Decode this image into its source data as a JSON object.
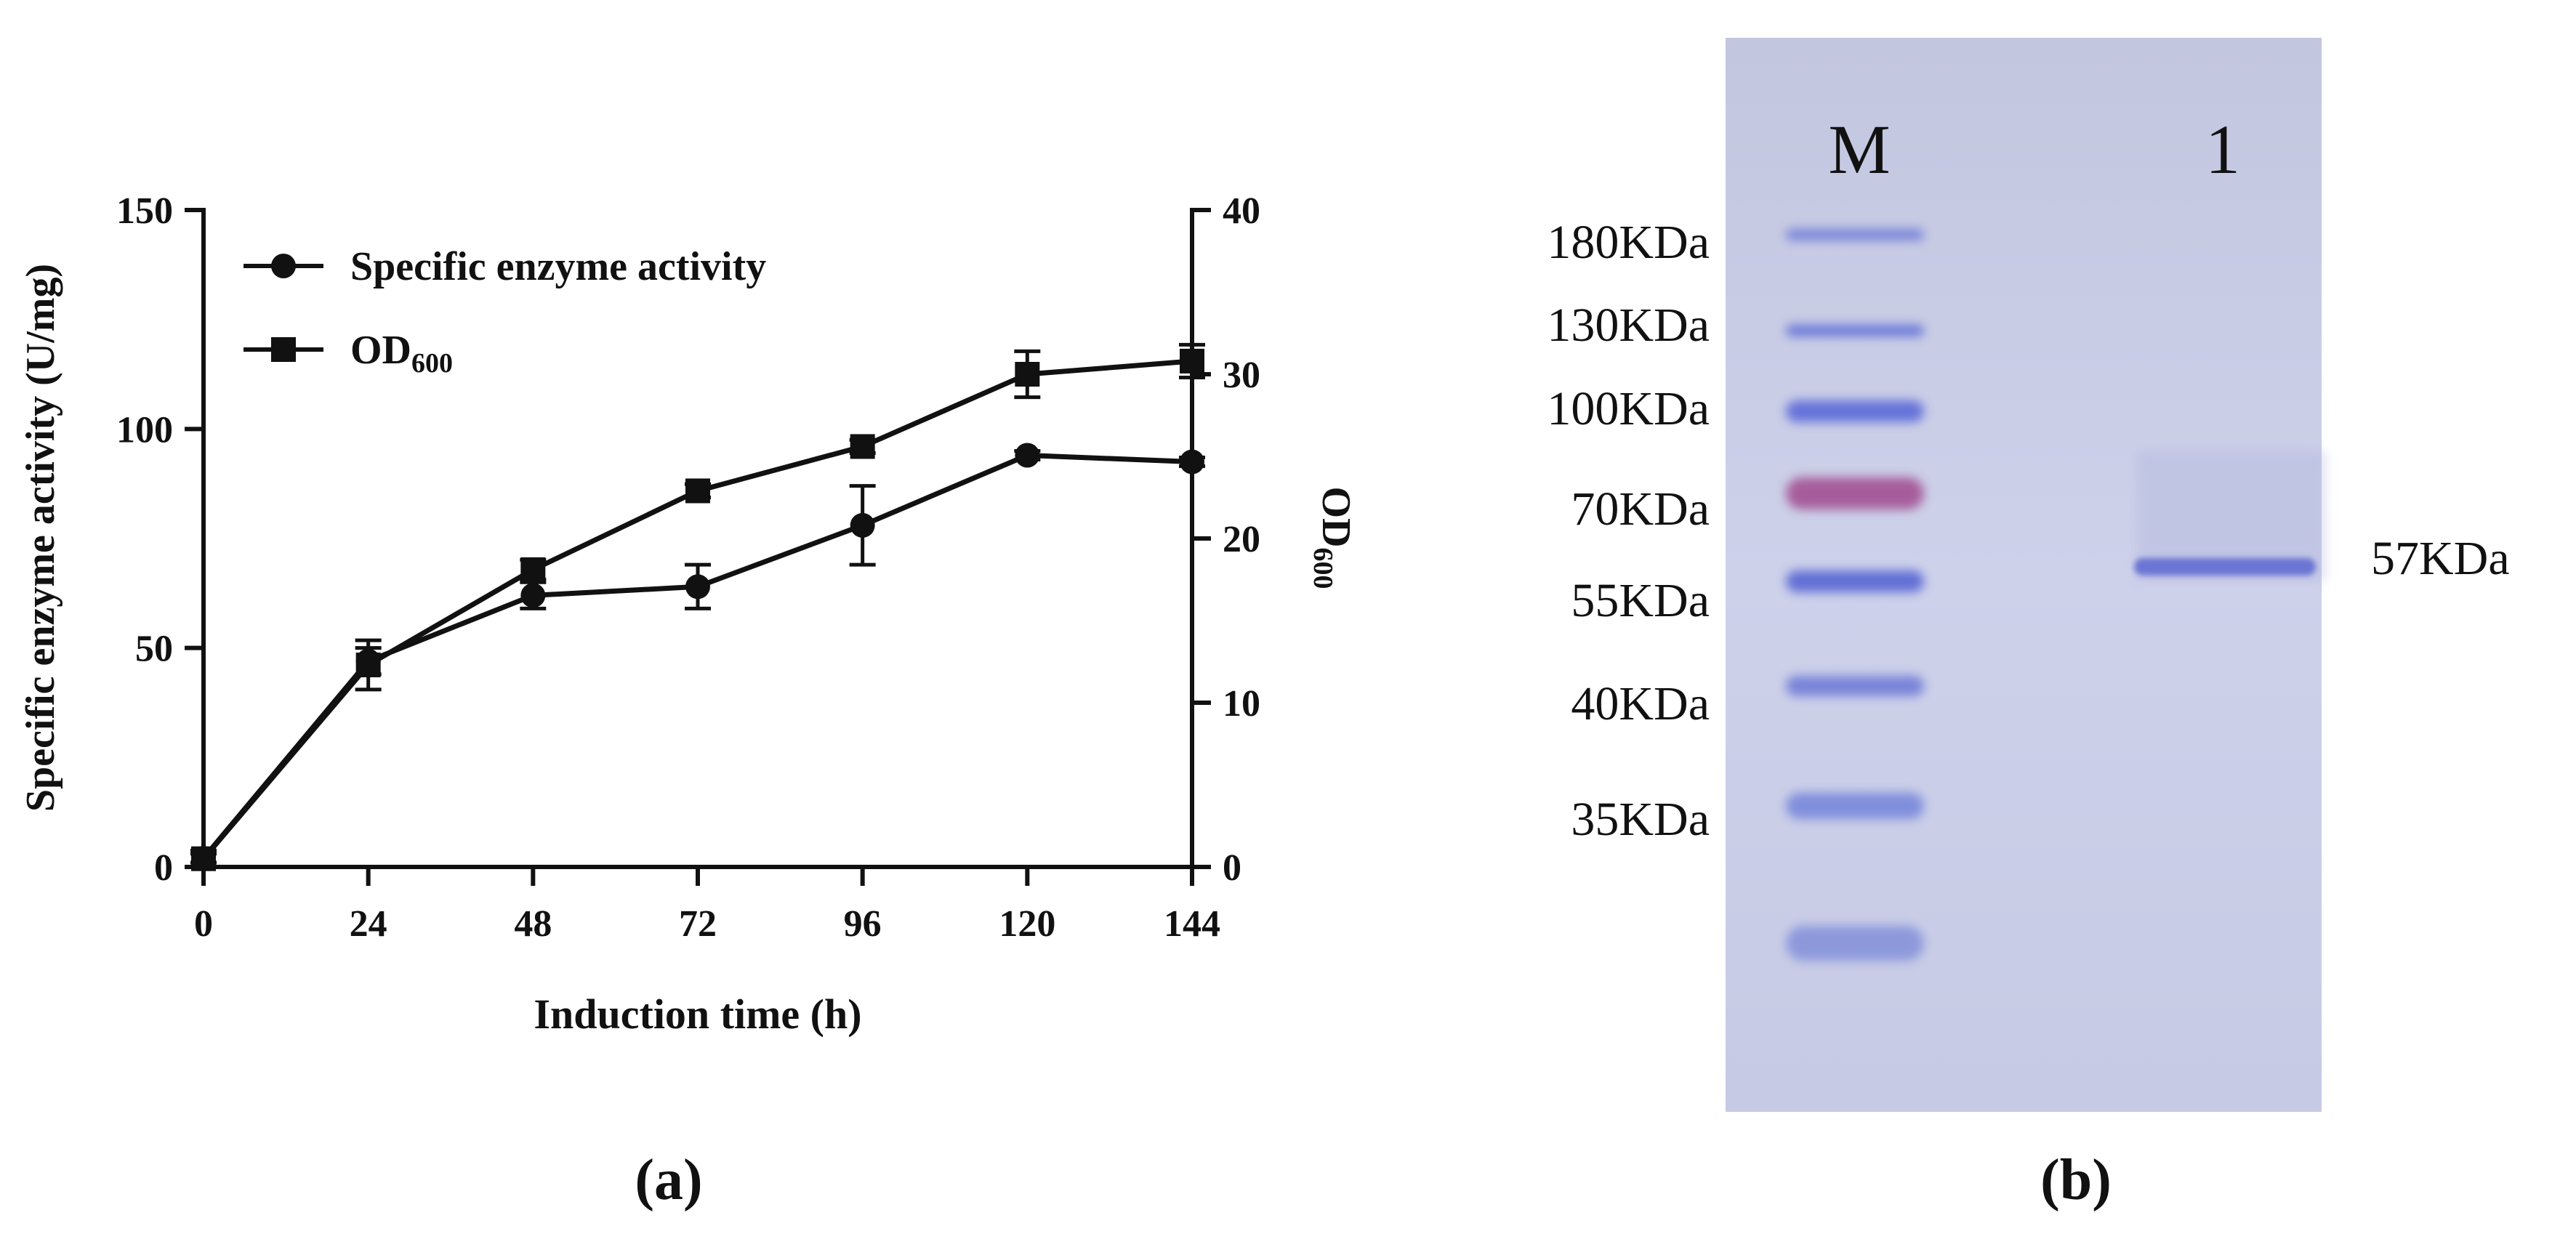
{
  "panel_a": {
    "label": "(a)",
    "chart_data": {
      "type": "line",
      "xlabel": "Induction time (h)",
      "ylabel": "Specific enzyme activity (U/mg)",
      "y2label_main": "OD",
      "y2label_sub": "600",
      "x": [
        0,
        24,
        48,
        72,
        96,
        120,
        144
      ],
      "x_ticks": [
        "0",
        "24",
        "48",
        "72",
        "96",
        "120",
        "144"
      ],
      "xlim": [
        0,
        144
      ],
      "ylim": [
        0,
        150
      ],
      "y_ticks": [
        "0",
        "50",
        "100",
        "150"
      ],
      "y2lim": [
        0,
        40
      ],
      "y2_ticks": [
        "0",
        "10",
        "20",
        "30",
        "40"
      ],
      "series": [
        {
          "name": "Specific enzyme activity",
          "axis": "left",
          "marker": "circle",
          "values": [
            2,
            47,
            62,
            64,
            78,
            94,
            92.5
          ],
          "errors": [
            1,
            3,
            3,
            5,
            9,
            1,
            1
          ]
        },
        {
          "name": "OD",
          "name_sub": "600",
          "axis": "right",
          "marker": "square",
          "values": [
            0.5,
            12.3,
            18.1,
            22.9,
            25.6,
            30.0,
            30.8
          ],
          "errors": [
            0.5,
            1.5,
            0.6,
            0.4,
            0.4,
            1.4,
            1.0
          ]
        }
      ]
    }
  },
  "panel_b": {
    "label": "(b)",
    "lanes": [
      "M",
      "1"
    ],
    "markers": [
      {
        "label": "180KDa",
        "color": "#6d79d8"
      },
      {
        "label": "130KDa",
        "color": "#5a6ad6"
      },
      {
        "label": "100KDa",
        "color": "#5563d8"
      },
      {
        "label": "70KDa",
        "color": "#a04a8e"
      },
      {
        "label": "55KDa",
        "color": "#4f5fd2"
      },
      {
        "label": "40KDa",
        "color": "#6a77d6"
      },
      {
        "label": "35KDa",
        "color": "#7383da"
      },
      {
        "label": "",
        "color": "#8390da"
      }
    ],
    "sample_band_label": "57KDa",
    "gel_color": "#ccd0e8",
    "sample_band_color": "#6a74d4"
  }
}
